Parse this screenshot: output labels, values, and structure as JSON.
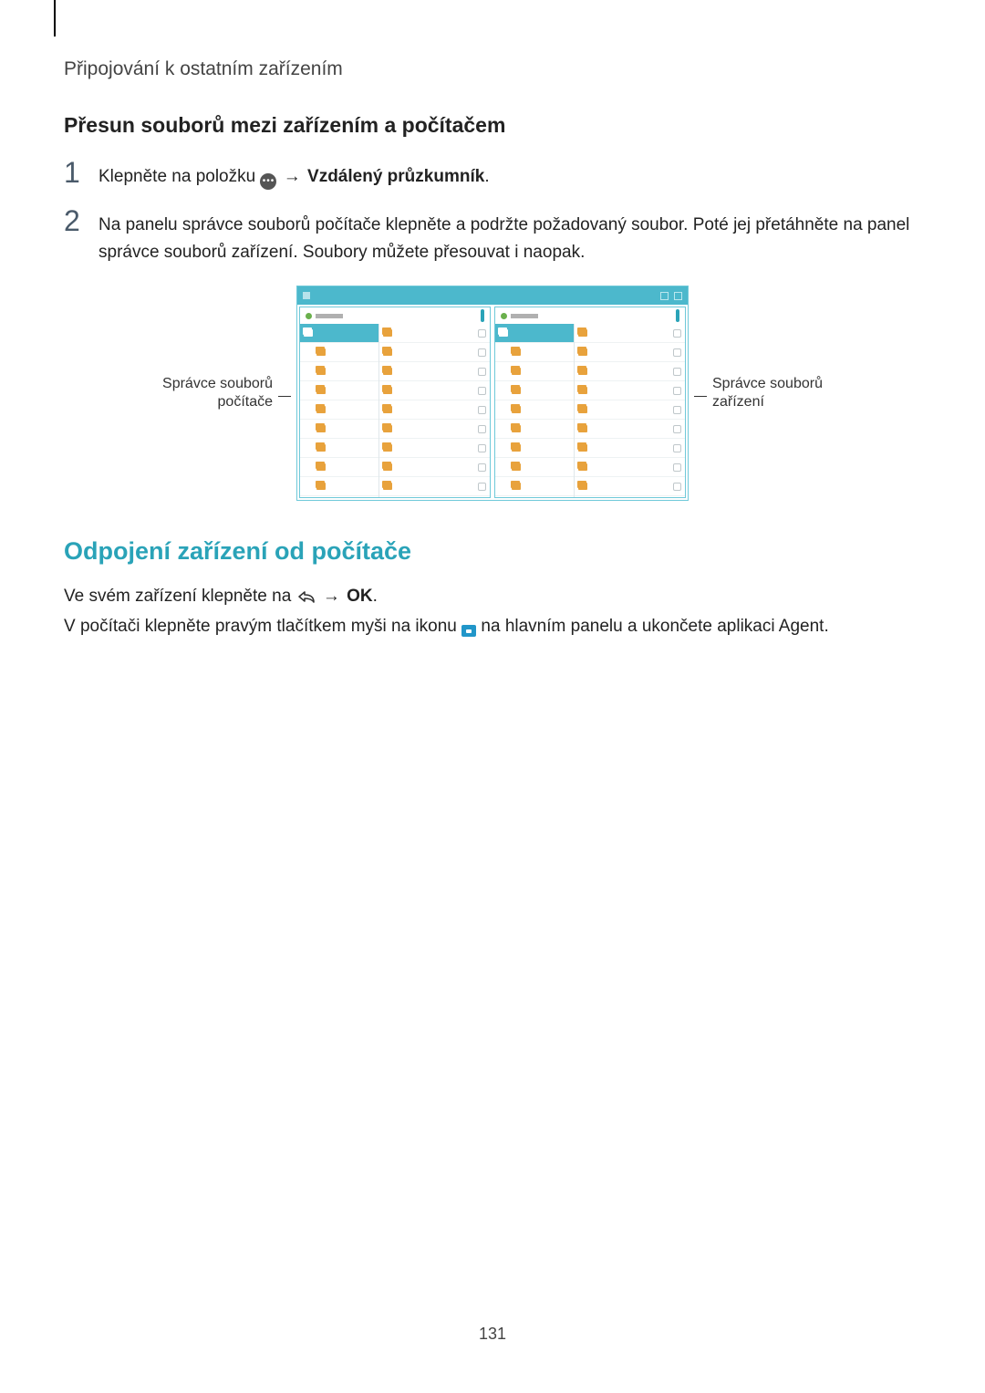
{
  "colors": {
    "teal": "#2aa3b8",
    "panel_border": "#6fc9d9",
    "titlebar": "#4cb8cc",
    "folder": "#e8a23c",
    "text": "#222222",
    "muted": "#9a9a9a",
    "back_icon": "#333333",
    "desktop_icon": "#2196c9"
  },
  "header": "Připojování k ostatním zařízením",
  "subheading": "Přesun souborů mezi zařízením a počítačem",
  "steps": {
    "s1": {
      "num": "1",
      "prefix": "Klepněte na položku ",
      "arrow": " → ",
      "bold": "Vzdálený průzkumník",
      "suffix": "."
    },
    "s2": {
      "num": "2",
      "text": "Na panelu správce souborů počítače klepněte a podržte požadovaný soubor. Poté jej přetáhněte na panel správce souborů zařízení. Soubory můžete přesouvat i naopak."
    }
  },
  "figure": {
    "left_label_l1": "Správce souborů",
    "left_label_l2": "počítače",
    "right_label_l1": "Správce souborů",
    "right_label_l2": "zařízení",
    "rows_per_side": 9
  },
  "disconnect": {
    "heading": "Odpojení zařízení od počítače",
    "line1_prefix": "Ve svém zařízení klepněte na ",
    "line1_arrow": " → ",
    "line1_bold": "OK",
    "line1_suffix": ".",
    "line2_prefix": "V počítači klepněte pravým tlačítkem myši na ikonu ",
    "line2_suffix": " na hlavním panelu a ukončete aplikaci Agent."
  },
  "page_number": "131"
}
